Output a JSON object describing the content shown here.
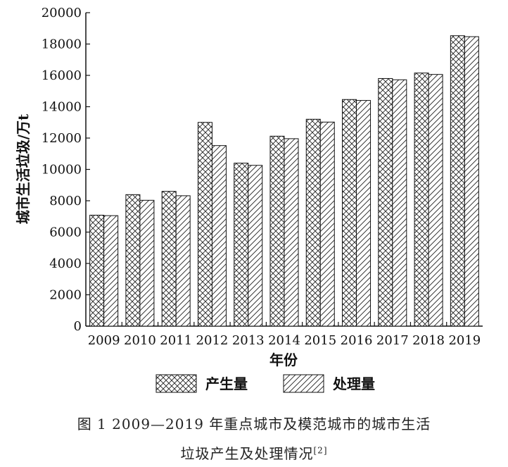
{
  "chart_data": {
    "type": "bar",
    "categories": [
      "2009",
      "2010",
      "2011",
      "2012",
      "2013",
      "2014",
      "2015",
      "2016",
      "2017",
      "2018",
      "2019"
    ],
    "series": [
      {
        "name": "产生量",
        "values": [
          7080,
          8390,
          8600,
          13000,
          10400,
          12120,
          13200,
          14460,
          15800,
          16150,
          18530
        ],
        "pattern": "crosshatch"
      },
      {
        "name": "处理量",
        "values": [
          7050,
          8030,
          8320,
          11520,
          10260,
          11960,
          13020,
          14400,
          15720,
          16060,
          18470
        ],
        "pattern": "diagonal"
      }
    ],
    "xlabel": "年份",
    "ylabel": "城市生活垃圾/万t",
    "ylim": [
      0,
      20000
    ],
    "yticks": [
      0,
      2000,
      4000,
      6000,
      8000,
      10000,
      12000,
      14000,
      16000,
      18000,
      20000
    ],
    "legend_position": "bottom",
    "grid": false
  },
  "caption": {
    "line1": "图 1   2009—2019 年重点城市及模范城市的城市生活",
    "line2": "垃圾产生及处理情况",
    "ref": "[2]"
  }
}
